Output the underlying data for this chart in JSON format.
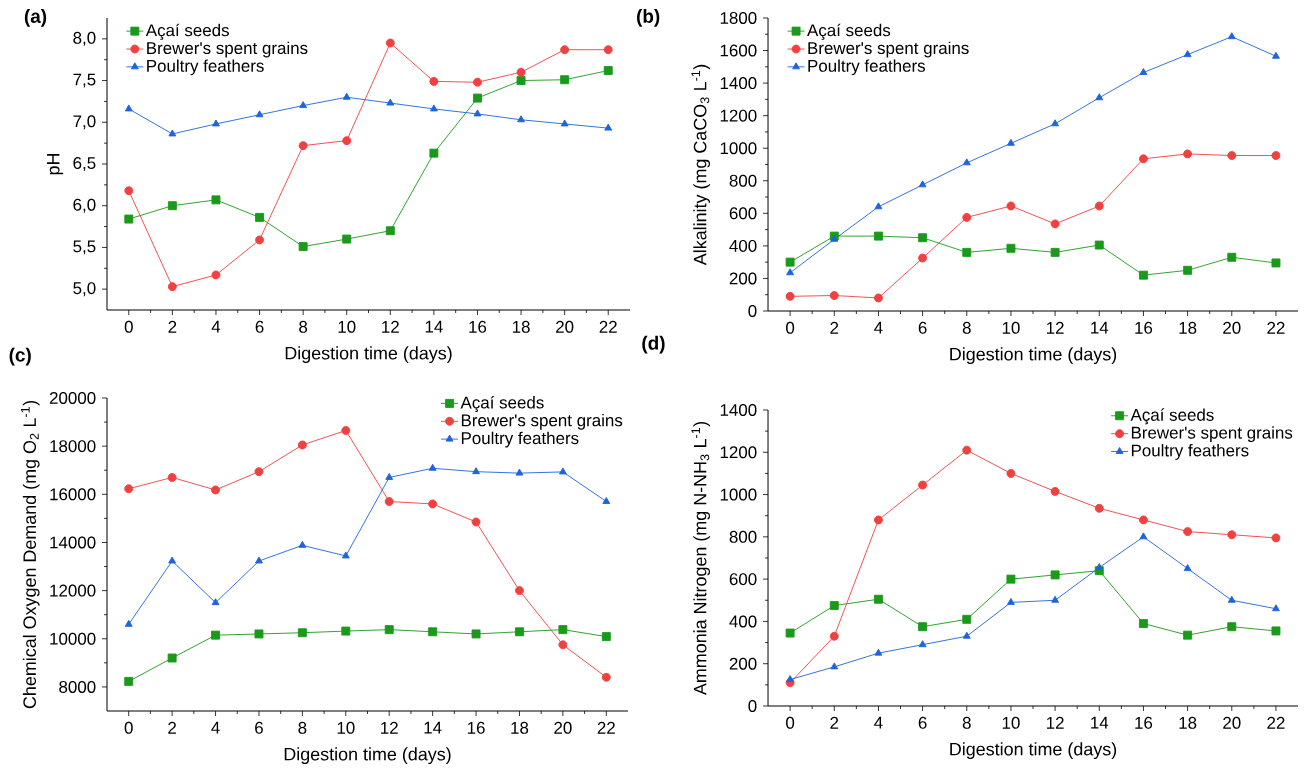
{
  "chart_data": [
    {
      "type": "line",
      "title": "(a)",
      "xlabel": "Digestion time (days)",
      "ylabel": "pH",
      "x": [
        0,
        2,
        4,
        6,
        8,
        10,
        12,
        14,
        16,
        18,
        20,
        22
      ],
      "xlim": [
        -1,
        23
      ],
      "xticks": [
        0,
        2,
        4,
        6,
        8,
        10,
        12,
        14,
        16,
        18,
        20,
        22
      ],
      "ylim": [
        4.75,
        8.25
      ],
      "yticks": [
        {
          "value": 5.0,
          "label": "5,0"
        },
        {
          "value": 5.5,
          "label": "5,5"
        },
        {
          "value": 6.0,
          "label": "6,0"
        },
        {
          "value": 6.5,
          "label": "6,5"
        },
        {
          "value": 7.0,
          "label": "7,0"
        },
        {
          "value": 7.5,
          "label": "7,5"
        },
        {
          "value": 8.0,
          "label": "8,0"
        }
      ],
      "legend": "top left",
      "series": [
        {
          "name": "Açaí seeds",
          "color": "#1a9a1a",
          "marker": "square",
          "values": [
            5.84,
            6.0,
            6.07,
            5.86,
            5.51,
            5.6,
            5.7,
            6.63,
            7.29,
            7.5,
            7.51,
            7.62
          ]
        },
        {
          "name": "Brewer's spent grains",
          "color": "#f04040",
          "marker": "circle",
          "values": [
            6.18,
            5.03,
            5.17,
            5.59,
            6.72,
            6.78,
            7.95,
            7.49,
            7.48,
            7.6,
            7.87,
            7.87
          ]
        },
        {
          "name": "Poultry feathers",
          "color": "#1e64dc",
          "marker": "triangle",
          "values": [
            7.16,
            6.86,
            6.98,
            7.09,
            7.2,
            7.3,
            7.23,
            7.16,
            7.1,
            7.03,
            6.98,
            6.93
          ]
        }
      ]
    },
    {
      "type": "line",
      "title": "(b)",
      "xlabel": "Digestion time (days)",
      "ylabel": "Alkalinity (mg CaCO$_{3}$ L$^{-1}$)",
      "x": [
        0,
        2,
        4,
        6,
        8,
        10,
        12,
        14,
        16,
        18,
        20,
        22
      ],
      "xlim": [
        -1,
        23
      ],
      "xticks": [
        0,
        2,
        4,
        6,
        8,
        10,
        12,
        14,
        16,
        18,
        20,
        22
      ],
      "ylim": [
        0,
        1800
      ],
      "yticks": [
        0,
        200,
        400,
        600,
        800,
        1000,
        1200,
        1400,
        1600,
        1800
      ],
      "legend": "top left",
      "series": [
        {
          "name": "Açaí seeds",
          "color": "#1a9a1a",
          "marker": "square",
          "values": [
            300,
            460,
            460,
            450,
            360,
            385,
            360,
            405,
            220,
            250,
            330,
            295
          ]
        },
        {
          "name": "Brewer's spent grains",
          "color": "#f04040",
          "marker": "circle",
          "values": [
            90,
            95,
            80,
            325,
            575,
            645,
            535,
            645,
            935,
            965,
            955,
            955
          ]
        },
        {
          "name": "Poultry feathers",
          "color": "#1e64dc",
          "marker": "triangle",
          "values": [
            235,
            440,
            640,
            775,
            910,
            1030,
            1150,
            1310,
            1465,
            1575,
            1685,
            1565
          ]
        }
      ]
    },
    {
      "type": "line",
      "title": "(c)",
      "xlabel": "Digestion time (days)",
      "ylabel": "Chemical Oxygen Demand (mg O$_{2}$ L$^{-1}$)",
      "x": [
        0,
        2,
        4,
        6,
        8,
        10,
        12,
        14,
        16,
        18,
        20,
        22
      ],
      "xlim": [
        -1,
        23
      ],
      "xticks": [
        0,
        2,
        4,
        6,
        8,
        10,
        12,
        14,
        16,
        18,
        20,
        22
      ],
      "ylim": [
        7000,
        20000
      ],
      "yticks": [
        8000,
        10000,
        12000,
        14000,
        16000,
        18000,
        20000
      ],
      "legend": "top right",
      "series": [
        {
          "name": "Açaí seeds",
          "color": "#1a9a1a",
          "marker": "square",
          "values": [
            8230,
            9200,
            10150,
            10200,
            10250,
            10320,
            10380,
            10290,
            10200,
            10290,
            10380,
            10090
          ]
        },
        {
          "name": "Brewer's spent grains",
          "color": "#f04040",
          "marker": "circle",
          "values": [
            16230,
            16700,
            16180,
            16940,
            18050,
            18650,
            15700,
            15600,
            14850,
            12000,
            9750,
            8400
          ]
        },
        {
          "name": "Poultry feathers",
          "color": "#1e64dc",
          "marker": "triangle",
          "values": [
            10600,
            13230,
            11500,
            13230,
            13880,
            13440,
            16700,
            17080,
            16940,
            16880,
            16930,
            15700
          ]
        }
      ]
    },
    {
      "type": "line",
      "title": "(d)",
      "xlabel": "Digestion time (days)",
      "ylabel": "Ammonia Nitrogen (mg N-NH$_{3}$ L$^{-1}$)",
      "x": [
        0,
        2,
        4,
        6,
        8,
        10,
        12,
        14,
        16,
        18,
        20,
        22
      ],
      "xlim": [
        -1,
        23
      ],
      "xticks": [
        0,
        2,
        4,
        6,
        8,
        10,
        12,
        14,
        16,
        18,
        20,
        22
      ],
      "ylim": [
        0,
        1400
      ],
      "yticks": [
        0,
        200,
        400,
        600,
        800,
        1000,
        1200,
        1400
      ],
      "legend": "top right",
      "series": [
        {
          "name": "Açaí seeds",
          "color": "#1a9a1a",
          "marker": "square",
          "values": [
            345,
            475,
            505,
            375,
            410,
            600,
            620,
            640,
            390,
            335,
            375,
            355
          ]
        },
        {
          "name": "Brewer's spent grains",
          "color": "#f04040",
          "marker": "circle",
          "values": [
            110,
            330,
            880,
            1045,
            1210,
            1100,
            1015,
            935,
            880,
            825,
            810,
            795
          ]
        },
        {
          "name": "Poultry feathers",
          "color": "#1e64dc",
          "marker": "triangle",
          "values": [
            125,
            185,
            250,
            290,
            330,
            490,
            500,
            655,
            800,
            650,
            500,
            460
          ]
        }
      ]
    }
  ]
}
